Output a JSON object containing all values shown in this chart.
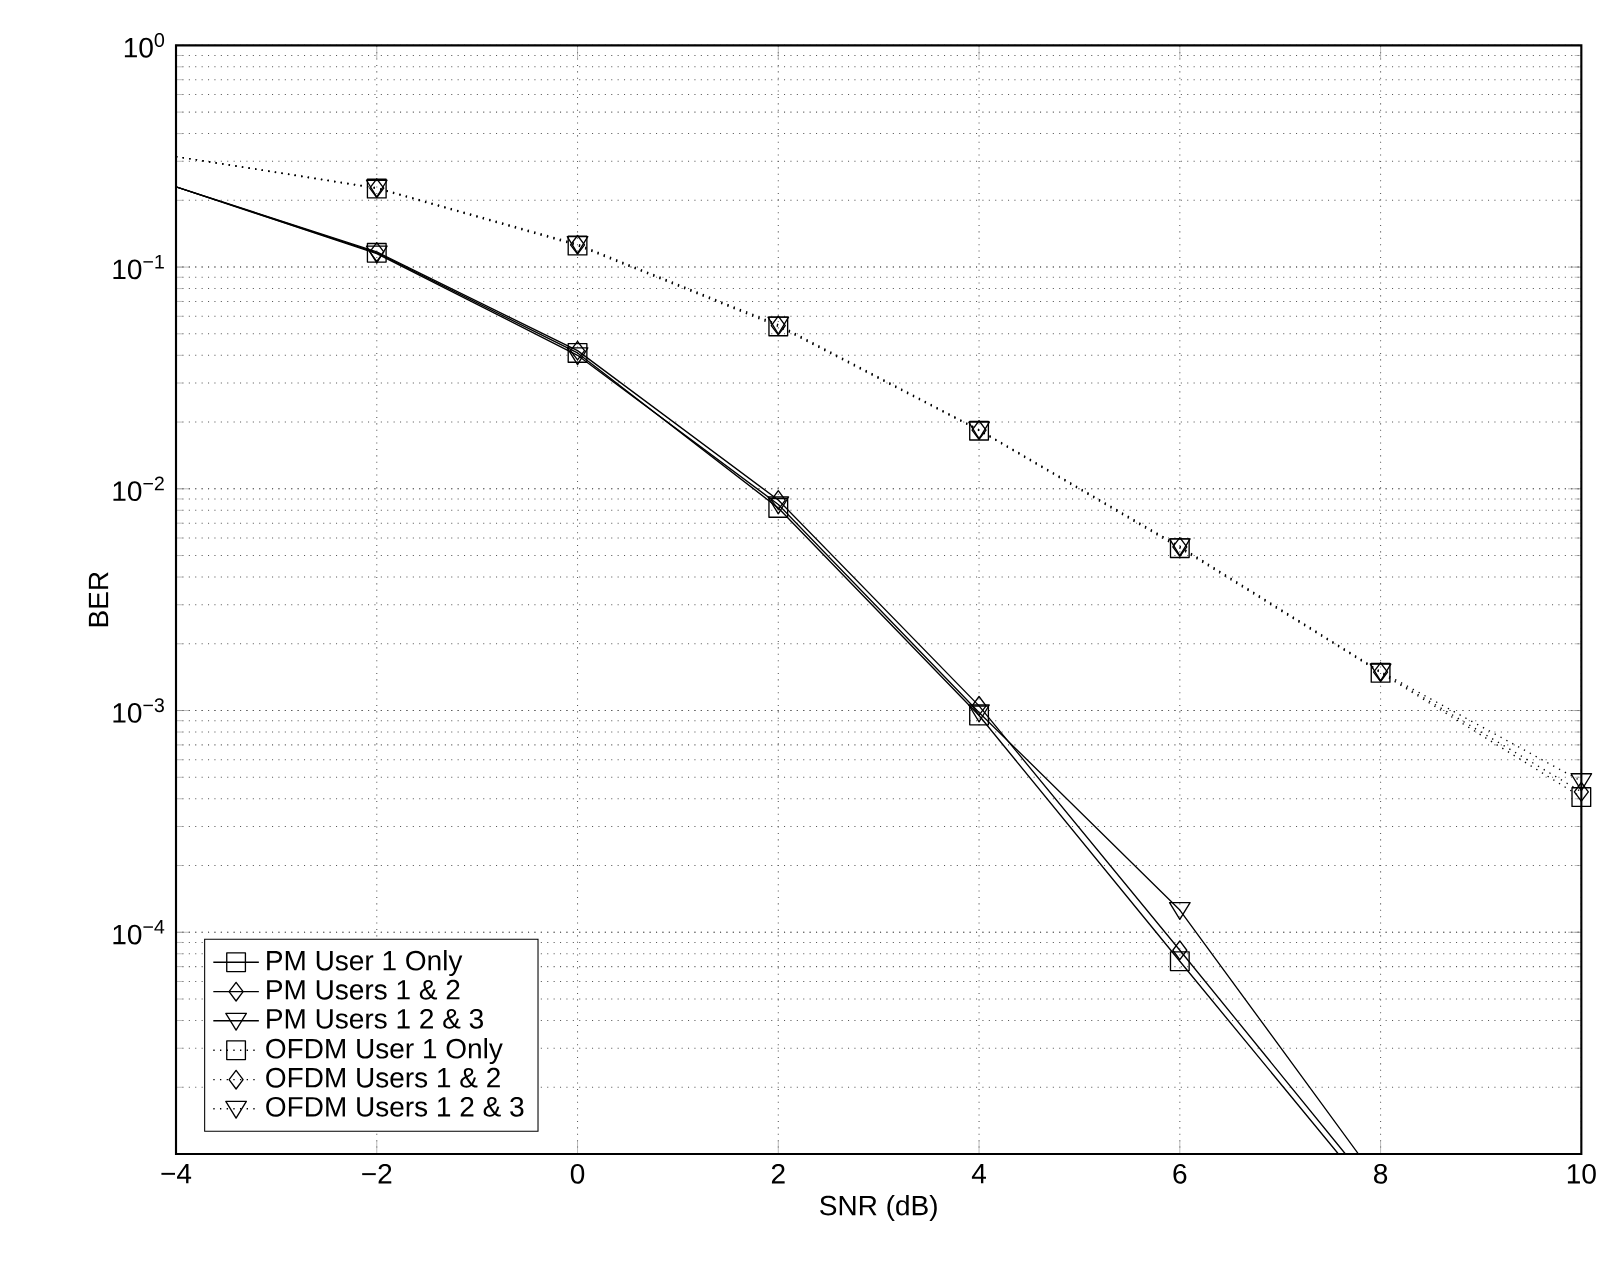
{
  "chart_data": {
    "type": "line",
    "xlabel": "SNR (dB)",
    "ylabel": "BER",
    "log": "y",
    "grid": true,
    "legend": "bottom left",
    "xlim": [
      -4,
      10
    ],
    "ylim": [
      1e-05,
      1
    ],
    "xticks": [
      {
        "value": -4,
        "label": "−4"
      },
      {
        "value": -2,
        "label": "−2"
      },
      0,
      2,
      4,
      6,
      8,
      10
    ],
    "yticks": [
      {
        "value": 1e-05,
        "label": null
      },
      {
        "value": 0.0001,
        "label": "10$^{−4}$"
      },
      {
        "value": 0.001,
        "label": "10$^{−3}$"
      },
      {
        "value": 0.01,
        "label": "10$^{−2}$"
      },
      {
        "value": 0.1,
        "label": "10$^{−1}$"
      },
      {
        "value": 1,
        "label": "10$^{0}$"
      }
    ],
    "series": [
      {
        "name": "PM User 1 Only",
        "color": "#000000",
        "marker": "square",
        "line_style": "solid",
        "x": [
          -4,
          -2,
          0,
          2,
          4,
          6,
          7.58
        ],
        "values": [
          0.23,
          0.116,
          0.041,
          0.0082,
          0.00095,
          7.4e-05,
          1e-05
        ]
      },
      {
        "name": "PM Users 1 & 2",
        "color": "#000000",
        "marker": "diamond",
        "line_style": "solid",
        "x": [
          -4,
          -2,
          0,
          2,
          4,
          6,
          7.65
        ],
        "values": [
          0.23,
          0.117,
          0.042,
          0.0089,
          0.00105,
          8.3e-05,
          1e-05
        ]
      },
      {
        "name": "PM Users 1 2 & 3",
        "color": "#000000",
        "marker": "triangle",
        "line_style": "solid",
        "x": [
          -4,
          -2,
          0,
          2,
          4,
          6,
          7.78
        ],
        "values": [
          0.23,
          0.115,
          0.04,
          0.0085,
          0.00098,
          0.000126,
          1e-05
        ]
      },
      {
        "name": "OFDM User 1 Only",
        "color": "#000000",
        "marker": "square",
        "line_style": "dotted",
        "x": [
          -4,
          -2,
          0,
          2,
          4,
          6,
          8,
          10
        ],
        "values": [
          0.315,
          0.226,
          0.125,
          0.054,
          0.0183,
          0.0054,
          0.00148,
          0.000407
        ]
      },
      {
        "name": "OFDM Users 1 & 2",
        "color": "#000000",
        "marker": "diamond",
        "line_style": "dotted",
        "x": [
          -4,
          -2,
          0,
          2,
          4,
          6,
          8,
          10
        ],
        "values": [
          0.315,
          0.227,
          0.126,
          0.0545,
          0.0184,
          0.00547,
          0.00149,
          0.00043
        ]
      },
      {
        "name": "OFDM Users 1 2 & 3",
        "color": "#000000",
        "marker": "triangle",
        "line_style": "dotted",
        "x": [
          -4,
          -2,
          0,
          2,
          4,
          6,
          8,
          10
        ],
        "values": [
          0.315,
          0.228,
          0.127,
          0.055,
          0.0185,
          0.0055,
          0.0015,
          0.00048
        ]
      }
    ]
  }
}
